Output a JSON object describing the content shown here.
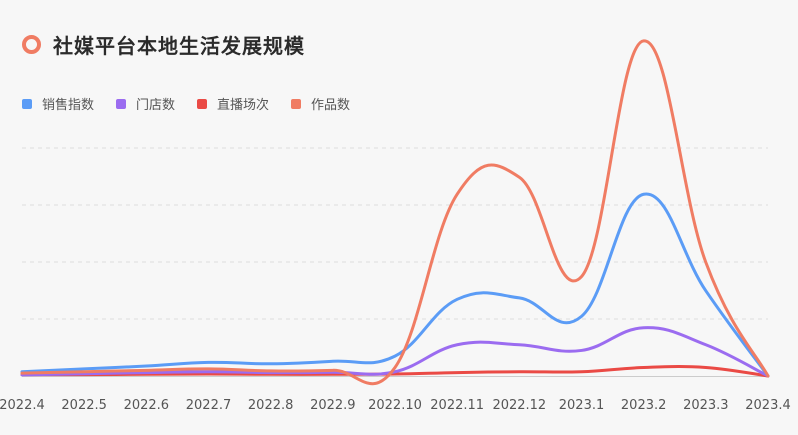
{
  "title": "社媒平台本地生活发展规模",
  "colors": {
    "background": "#f7f7f7",
    "title_ring": "#f07c63",
    "grid": "#dddddd",
    "axis": "#cccccc"
  },
  "chart_data": {
    "type": "line",
    "title": "社媒平台本地生活发展规模",
    "xlabel": "",
    "ylabel": "",
    "categories": [
      "2022.4",
      "2022.5",
      "2022.6",
      "2022.7",
      "2022.8",
      "2022.9",
      "2022.10",
      "2022.11",
      "2022.12",
      "2023.1",
      "2023.2",
      "2023.3",
      "2023.4"
    ],
    "ylim": [
      0,
      100
    ],
    "grid": true,
    "legend_position": "top-left",
    "series": [
      {
        "name": "销售指数",
        "color": "#5b9cf6",
        "values": [
          1.5,
          2.5,
          3.5,
          4.8,
          4.3,
          5.2,
          7,
          27,
          27.5,
          21,
          64,
          30,
          0
        ]
      },
      {
        "name": "门店数",
        "color": "#9b6cf0",
        "values": [
          0.4,
          0.8,
          1.2,
          1.5,
          1.2,
          1.3,
          1.5,
          11,
          11,
          9,
          17,
          11,
          0
        ]
      },
      {
        "name": "直播场次",
        "color": "#ea4a45",
        "values": [
          0.5,
          0.5,
          0.6,
          0.7,
          0.6,
          0.6,
          0.7,
          1.2,
          1.5,
          1.5,
          3,
          3,
          0
        ]
      },
      {
        "name": "作品数",
        "color": "#f07c63",
        "values": [
          1,
          1.5,
          2,
          2.5,
          1.8,
          2,
          3,
          64,
          70,
          35,
          118,
          40,
          0
        ]
      }
    ]
  }
}
